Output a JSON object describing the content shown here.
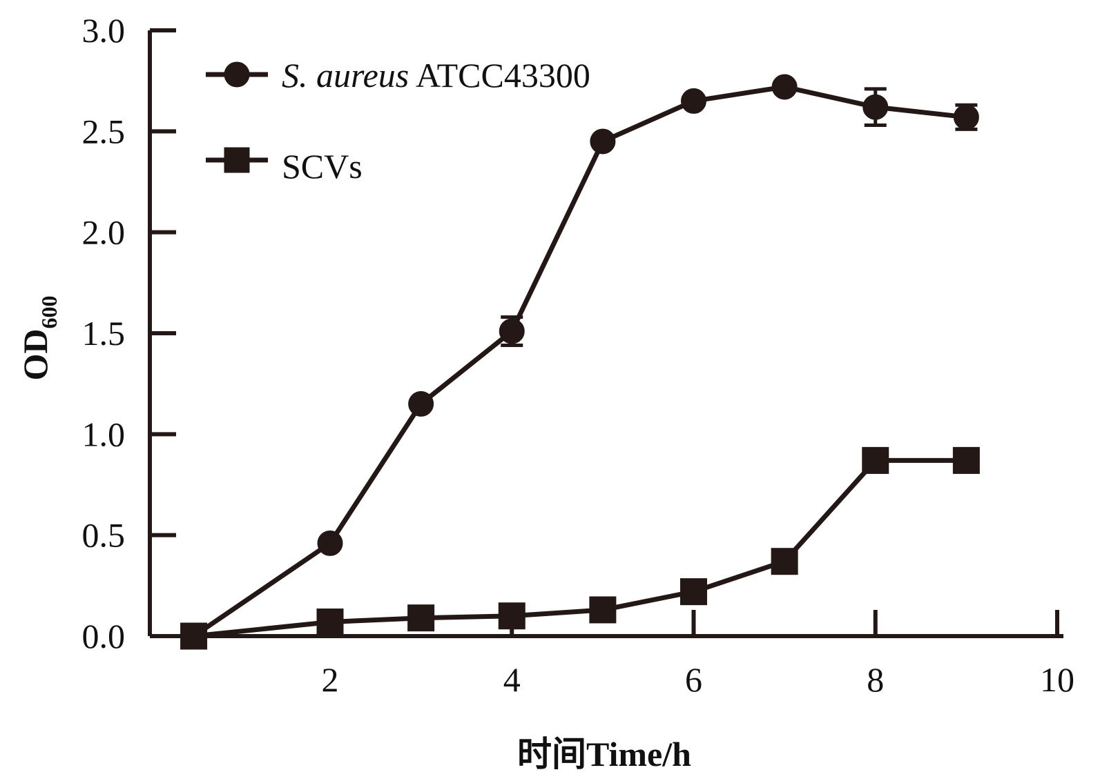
{
  "chart_data": {
    "type": "line",
    "title": "",
    "xlabel": "时间Time/h",
    "ylabel": "OD",
    "ylabel_subscript": "600",
    "xlim": [
      0,
      10
    ],
    "ylim": [
      0,
      3.0
    ],
    "xticks": [
      2,
      4,
      6,
      8,
      10
    ],
    "xtick_labels": [
      "2",
      "4",
      "6",
      "8",
      "10"
    ],
    "yticks": [
      0,
      0.5,
      1.0,
      1.5,
      2.0,
      2.5,
      3.0
    ],
    "ytick_labels": [
      "0.0",
      "0.5",
      "1.0",
      "1.5",
      "2.0",
      "2.5",
      "3.0"
    ],
    "grid": false,
    "legend_position": "top-left",
    "series": [
      {
        "name": "S. aureus ATCC43300",
        "name_italic": "S. aureus",
        "name_rest": " ATCC43300",
        "marker": "circle",
        "color": "#231815",
        "x": [
          0.5,
          2,
          3,
          4,
          5,
          6,
          7,
          8,
          9
        ],
        "y": [
          0.0,
          0.46,
          1.15,
          1.51,
          2.45,
          2.65,
          2.72,
          2.62,
          2.57
        ],
        "error": [
          0,
          0,
          0,
          0.07,
          0,
          0,
          0,
          0.09,
          0.06
        ]
      },
      {
        "name": "SCVs",
        "marker": "square",
        "color": "#231815",
        "x": [
          0.5,
          2,
          3,
          4,
          5,
          6,
          7,
          8,
          9
        ],
        "y": [
          0.0,
          0.07,
          0.09,
          0.1,
          0.13,
          0.22,
          0.37,
          0.87,
          0.87
        ],
        "error": [
          0,
          0,
          0,
          0,
          0,
          0,
          0,
          0,
          0
        ]
      }
    ]
  }
}
